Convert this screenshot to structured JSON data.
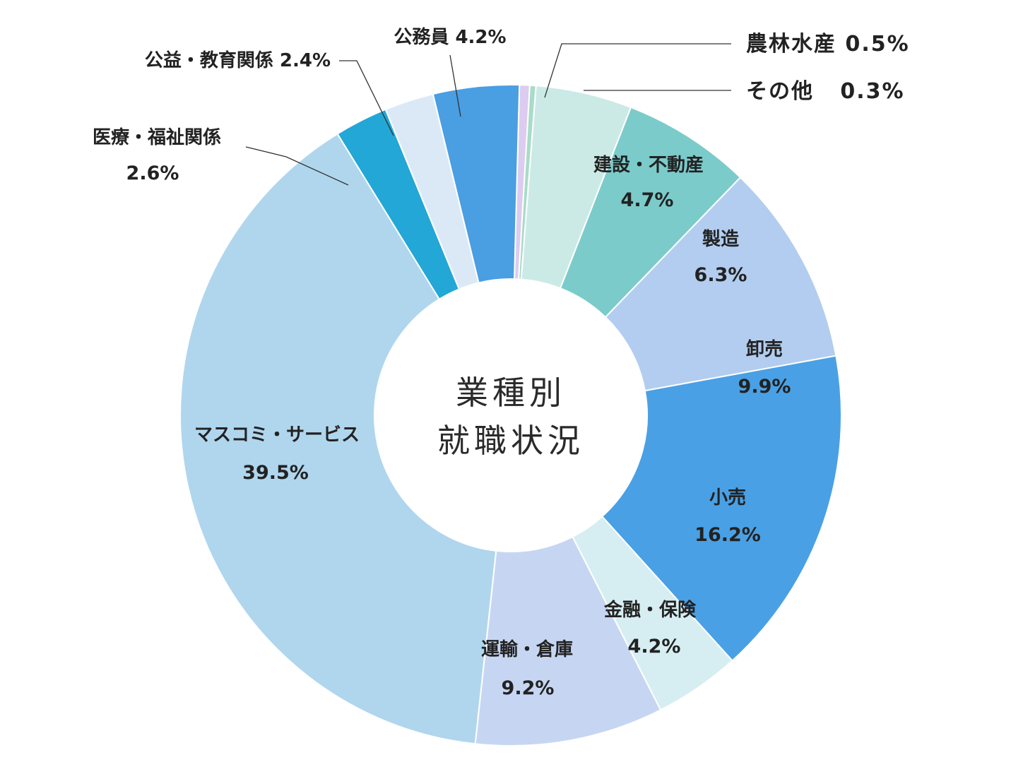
{
  "chart_data": {
    "type": "pie",
    "title_lines": [
      "業種別",
      "就職状況"
    ],
    "categories": [
      "農林水産",
      "その他",
      "建設・不動産",
      "製造",
      "卸売",
      "小売",
      "金融・保険",
      "運輸・倉庫",
      "マスコミ・サービス",
      "医療・福祉関係",
      "公益・教育関係",
      "公務員"
    ],
    "values": [
      0.5,
      0.3,
      4.7,
      6.3,
      9.9,
      16.2,
      4.2,
      9.2,
      39.5,
      2.6,
      2.4,
      4.2
    ],
    "value_labels": [
      "0.5%",
      "0.3%",
      "4.7%",
      "6.3%",
      "9.9%",
      "16.2%",
      "4.2%",
      "9.2%",
      "39.5%",
      "2.6%",
      "2.4%",
      "4.2%"
    ],
    "colors": [
      "#dcccf0",
      "#a8dcc8",
      "#cbeae6",
      "#7ccbcb",
      "#b2cdef",
      "#4aa0e4",
      "#d6eef2",
      "#c6d6f2",
      "#b0d6ee",
      "#22a7d6",
      "#dbe9f7",
      "#4a9ee2"
    ],
    "callout_labels": {
      "koumuin": "公務員 4.2%",
      "koueki": "公益・教育関係 2.4%",
      "iryou_name": "医療・福祉関係",
      "iryou_value": "2.6%",
      "nourin": "農林水産  0.5%",
      "sonota": "その他   0.3%"
    },
    "inside_labels": {
      "kensetsu_name": "建設・不動産",
      "kensetsu_value": "4.7%",
      "seizou_name": "製造",
      "seizou_value": "6.3%",
      "oroshi_name": "卸売",
      "oroshi_value": "9.9%",
      "kouri_name": "小売",
      "kouri_value": "16.2%",
      "kinyu_name": "金融・保険",
      "kinyu_value": "4.2%",
      "unyu_name": "運輸・倉庫",
      "unyu_value": "9.2%",
      "masukomi_name": "マスコミ・サービス",
      "masukomi_value": "39.5%"
    }
  }
}
